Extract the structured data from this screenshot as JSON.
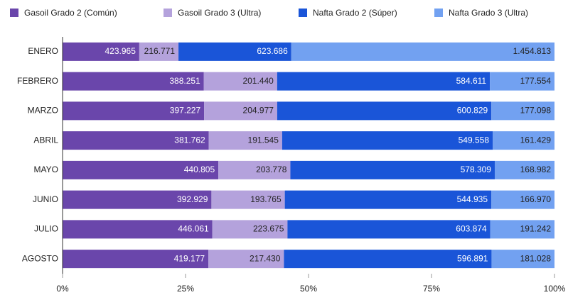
{
  "chart_data": {
    "type": "bar",
    "orientation": "horizontal",
    "stacked": "percent",
    "categories": [
      "ENERO",
      "FEBRERO",
      "MARZO",
      "ABRIL",
      "MAYO",
      "JUNIO",
      "JULIO",
      "AGOSTO"
    ],
    "series": [
      {
        "name": "Gasoil Grado 2 (Común)",
        "color": "#6a46ab",
        "label_color": "#ffffff",
        "values": [
          423965,
          388251,
          397227,
          381762,
          440805,
          392929,
          446061,
          419177
        ],
        "value_labels": [
          "423.965",
          "388.251",
          "397.227",
          "381.762",
          "440.805",
          "392.929",
          "446.061",
          "419.177"
        ]
      },
      {
        "name": "Gasoil Grado 3 (Ultra)",
        "color": "#b4a2dc",
        "label_color": "#222222",
        "values": [
          216771,
          201440,
          204977,
          191545,
          203778,
          193765,
          223675,
          217430
        ],
        "value_labels": [
          "216.771",
          "201.440",
          "204.977",
          "191.545",
          "203.778",
          "193.765",
          "223.675",
          "217.430"
        ]
      },
      {
        "name": "Nafta Grado 2 (Súper)",
        "color": "#1a55d8",
        "label_color": "#ffffff",
        "values": [
          623686,
          584611,
          600829,
          549558,
          578309,
          544935,
          603874,
          596891
        ],
        "value_labels": [
          "623.686",
          "584.611",
          "600.829",
          "549.558",
          "578.309",
          "544.935",
          "603.874",
          "596.891"
        ]
      },
      {
        "name": "Nafta Grado 3 (Ultra)",
        "color": "#72a1f1",
        "label_color": "#222222",
        "values": [
          1454813,
          177554,
          177098,
          161429,
          168982,
          166970,
          191242,
          181028
        ],
        "value_labels": [
          "1.454.813",
          "177.554",
          "177.098",
          "161.429",
          "168.982",
          "166.970",
          "191.242",
          "181.028"
        ]
      }
    ],
    "xlim": [
      0,
      100
    ],
    "xticks": [
      {
        "value": 0,
        "label": "0%"
      },
      {
        "value": 25,
        "label": "25%"
      },
      {
        "value": 50,
        "label": "50%"
      },
      {
        "value": 75,
        "label": "75%"
      },
      {
        "value": 100,
        "label": "100%"
      }
    ],
    "legend": "top"
  }
}
